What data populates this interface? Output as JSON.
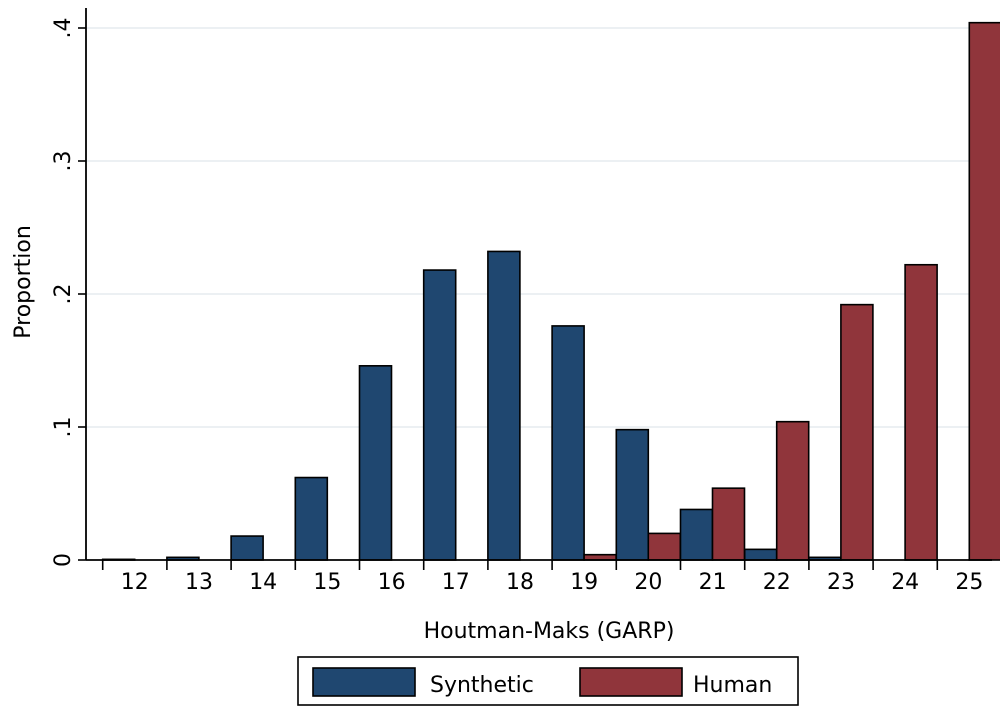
{
  "chart_data": {
    "type": "bar",
    "xlabel": "Houtman-Maks (GARP)",
    "ylabel": "Proportion",
    "categories": [
      "12",
      "13",
      "14",
      "15",
      "16",
      "17",
      "18",
      "19",
      "20",
      "21",
      "22",
      "23",
      "24",
      "25"
    ],
    "series": [
      {
        "name": "Synthetic",
        "color": "#1f4770",
        "values": [
          0.0005,
          0.002,
          0.018,
          0.062,
          0.146,
          0.218,
          0.232,
          0.176,
          0.098,
          0.038,
          0.008,
          0.002,
          0.0,
          0.0
        ]
      },
      {
        "name": "Human",
        "color": "#90353b",
        "values": [
          0.0,
          0.0,
          0.0,
          0.0,
          0.0,
          0.0,
          0.0,
          0.004,
          0.02,
          0.054,
          0.104,
          0.192,
          0.222,
          0.404
        ]
      }
    ],
    "ylim": [
      0,
      0.4
    ],
    "yticks": [
      {
        "value": 0,
        "label": "0"
      },
      {
        "value": 0.1,
        "label": ".1"
      },
      {
        "value": 0.2,
        "label": ".2"
      },
      {
        "value": 0.3,
        "label": ".3"
      },
      {
        "value": 0.4,
        "label": ".4"
      }
    ],
    "grid": true,
    "gridColor": "#e5ecef",
    "legend_position": "bottom-center"
  }
}
